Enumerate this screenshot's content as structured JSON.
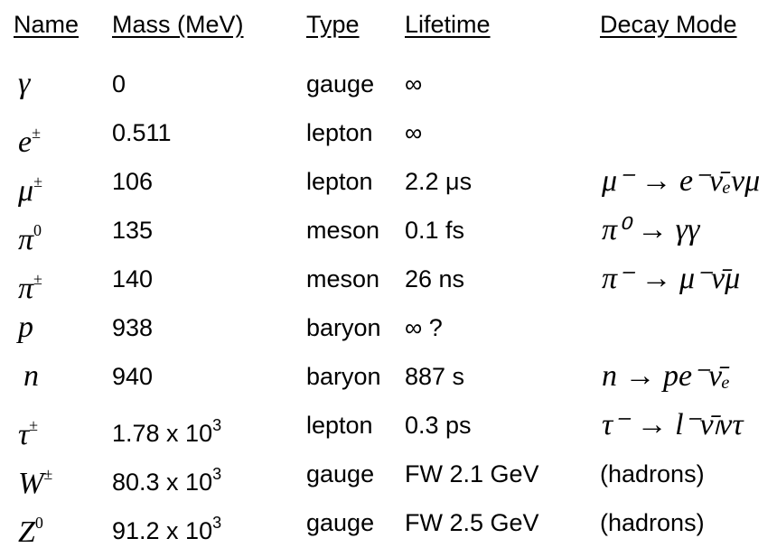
{
  "headers": {
    "name": "Name",
    "mass": "Mass (MeV)",
    "type": "Type",
    "lifetime": "Lifetime",
    "decay": "Decay Mode"
  },
  "rows": [
    {
      "name": "γ",
      "name_sup": "",
      "mass": "0",
      "mass_exp": "",
      "type": "gauge",
      "lifetime": "∞",
      "decay": ""
    },
    {
      "name": "e",
      "name_sup": "±",
      "mass": "0.511",
      "mass_exp": "",
      "type": "lepton",
      "lifetime": "∞",
      "decay": ""
    },
    {
      "name": "μ",
      "name_sup": "±",
      "mass": "106",
      "mass_exp": "",
      "type": "lepton",
      "lifetime": "2.2 μs",
      "decay": "μ⁻ → e⁻ν̄ₑνμ"
    },
    {
      "name": "π",
      "name_sup": "0",
      "mass": "135",
      "mass_exp": "",
      "type": "meson",
      "lifetime": "0.1 fs",
      "decay": "π⁰ → γγ"
    },
    {
      "name": "π",
      "name_sup": "±",
      "mass": "140",
      "mass_exp": "",
      "type": "meson",
      "lifetime": "26 ns",
      "decay": "π⁻ → μ⁻ν̄μ"
    },
    {
      "name": "p",
      "name_sup": "",
      "mass": "938",
      "mass_exp": "",
      "type": "baryon",
      "lifetime": "∞ ?",
      "decay": ""
    },
    {
      "name": "n",
      "name_sup": "",
      "mass": "940",
      "mass_exp": "",
      "type": "baryon",
      "lifetime": "887 s",
      "decay": "n → pe⁻ν̄ₑ"
    },
    {
      "name": "τ",
      "name_sup": "±",
      "mass": "1.78 x 10",
      "mass_exp": "3",
      "type": "lepton",
      "lifetime": "0.3 ps",
      "decay": "τ⁻ → l⁻ν̄ₗντ"
    },
    {
      "name": "W",
      "name_sup": "±",
      "mass": "80.3 x 10",
      "mass_exp": "3",
      "type": "gauge",
      "lifetime": "FW 2.1 GeV",
      "decay": "(hadrons)"
    },
    {
      "name": "Z",
      "name_sup": "0",
      "mass": "91.2 x 10",
      "mass_exp": "3",
      "type": "gauge",
      "lifetime": "FW 2.5 GeV",
      "decay": "(hadrons)"
    }
  ]
}
